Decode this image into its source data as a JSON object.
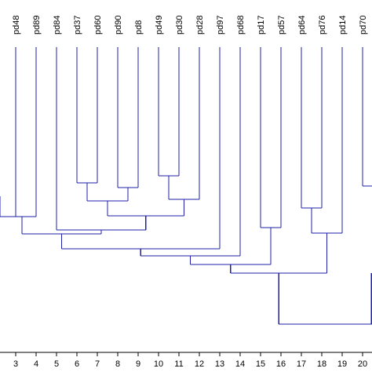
{
  "colors": {
    "tree": "#1f1fa8",
    "text": "#000000",
    "background": "#ffffff"
  },
  "leaves": [
    {
      "label": "pd48",
      "tick": "3"
    },
    {
      "label": "pd89",
      "tick": "4"
    },
    {
      "label": "pd84",
      "tick": "5"
    },
    {
      "label": "pd37",
      "tick": "6"
    },
    {
      "label": "pd60",
      "tick": "7"
    },
    {
      "label": "pd90",
      "tick": "8"
    },
    {
      "label": "pd8",
      "tick": "9"
    },
    {
      "label": "pd49",
      "tick": "10"
    },
    {
      "label": "pd30",
      "tick": "11"
    },
    {
      "label": "pd28",
      "tick": "12"
    },
    {
      "label": "pd97",
      "tick": "13"
    },
    {
      "label": "pd68",
      "tick": "14"
    },
    {
      "label": "pd17",
      "tick": "15"
    },
    {
      "label": "pd57",
      "tick": "16"
    },
    {
      "label": "pd64",
      "tick": "17"
    },
    {
      "label": "pd76",
      "tick": "18"
    },
    {
      "label": "pd14",
      "tick": "19"
    },
    {
      "label": "pd70",
      "tick": "20"
    }
  ]
}
